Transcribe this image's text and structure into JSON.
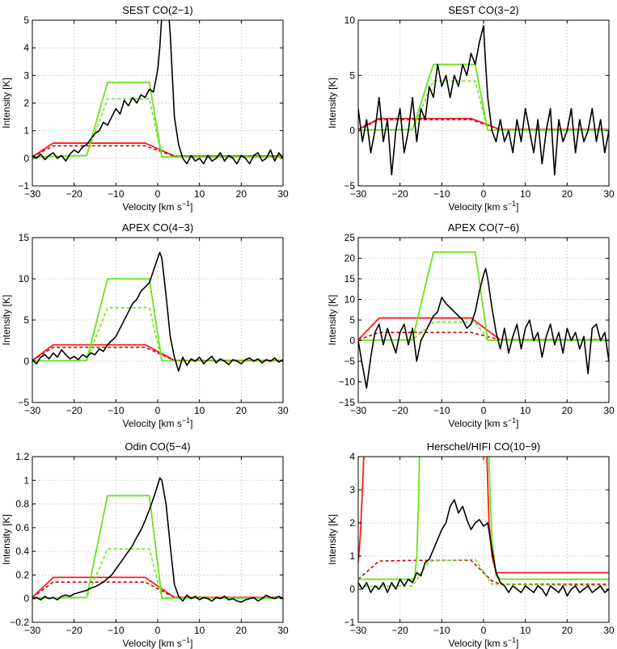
{
  "figure": {
    "xlabel": "Velocity [km s",
    "xlabel_sup": "−1",
    "xlabel_end": "]",
    "ylabel": "Intensity [K]"
  },
  "chart_data": [
    {
      "type": "line",
      "title": "SEST CO(2−1)",
      "xlim": [
        -30,
        30
      ],
      "ylim": [
        -1,
        5
      ],
      "xticks": [
        -30,
        -20,
        -10,
        0,
        10,
        20,
        30
      ],
      "xtick_labels": [
        "−30",
        "−20",
        "−10",
        "0",
        "10",
        "20",
        "30"
      ],
      "yticks": [
        -1,
        0,
        1,
        2,
        3,
        4,
        5
      ],
      "ytick_labels": [
        "−1",
        "0",
        "1",
        "2",
        "3",
        "4",
        "5"
      ],
      "grid": true,
      "model_red": [
        -30,
        0.05,
        -25,
        0.55,
        -3,
        0.55,
        4,
        0.08,
        30,
        0.08
      ],
      "model_red_dash": [
        -30,
        0.05,
        -25,
        0.45,
        -3,
        0.45,
        4,
        0.07,
        30,
        0.07
      ],
      "model_green": [
        -30,
        0.05,
        -17,
        0.1,
        -12,
        2.75,
        -2,
        2.75,
        1,
        0.05,
        30,
        0.05
      ],
      "model_green_dash": [
        -30,
        0.05,
        -17,
        0.1,
        -12,
        2.15,
        -2,
        2.15,
        1,
        0.05,
        30,
        0.05
      ],
      "observed": [
        -30,
        0.1,
        -29,
        0.0,
        -28,
        0.15,
        -27,
        -0.05,
        -26,
        0.1,
        -25,
        0.2,
        -24,
        0.0,
        -23,
        0.1,
        -22,
        -0.1,
        -21,
        0.15,
        -20,
        0.3,
        -19,
        0.2,
        -18,
        0.4,
        -17,
        0.5,
        -16,
        0.7,
        -15,
        0.9,
        -14,
        1.0,
        -13,
        1.3,
        -12,
        1.2,
        -11,
        1.5,
        -10,
        1.8,
        -9,
        1.6,
        -8,
        2.1,
        -7,
        1.9,
        -6,
        2.2,
        -5,
        2.0,
        -4,
        2.3,
        -3,
        2.2,
        -2,
        2.5,
        -1,
        2.4,
        0,
        3.2,
        0.5,
        4.0,
        1,
        5.2,
        2,
        6.5,
        3,
        4.5,
        4,
        1.5,
        5,
        0.5,
        6,
        0.0,
        7,
        -0.2,
        8,
        0.1,
        9,
        -0.1,
        10,
        0.0,
        11,
        -0.2,
        12,
        0.1,
        13,
        -0.1,
        14,
        0.0,
        15,
        0.2,
        16,
        -0.1,
        17,
        0.1,
        18,
        0.0,
        19,
        -0.2,
        20,
        0.1,
        21,
        0.0,
        22,
        -0.2,
        23,
        0.1,
        24,
        0.2,
        25,
        -0.1,
        26,
        0.0,
        27,
        0.3,
        28,
        -0.1,
        29,
        0.2,
        30,
        0.0
      ]
    },
    {
      "type": "line",
      "title": "SEST CO(3−2)",
      "xlim": [
        -30,
        30
      ],
      "ylim": [
        -5,
        10
      ],
      "xticks": [
        -30,
        -20,
        -10,
        0,
        10,
        20,
        30
      ],
      "xtick_labels": [
        "−30",
        "−20",
        "−10",
        "0",
        "10",
        "20",
        "30"
      ],
      "yticks": [
        -5,
        0,
        5,
        10
      ],
      "ytick_labels": [
        "−5",
        "0",
        "5",
        "10"
      ],
      "grid": true,
      "model_red": [
        -30,
        0.1,
        -25,
        1.1,
        -3,
        1.1,
        4,
        0.1,
        30,
        0.1
      ],
      "model_red_dash": [
        -30,
        0.1,
        -25,
        1.0,
        -3,
        1.0,
        4,
        0.1,
        30,
        0.1
      ],
      "model_green": [
        -30,
        0.05,
        -17,
        0.1,
        -12,
        6.0,
        -2,
        6.0,
        1,
        0.05,
        30,
        0.05
      ],
      "model_green_dash": [
        -30,
        0.05,
        -17,
        0.1,
        -12,
        4.5,
        -2,
        4.5,
        1,
        0.05,
        30,
        0.05
      ],
      "observed": [
        -30,
        2,
        -29,
        -1,
        -28,
        1,
        -27,
        -2,
        -26,
        0,
        -25,
        3,
        -24,
        -1,
        -23,
        1,
        -22,
        -4,
        -21,
        0,
        -20,
        2,
        -19,
        -2,
        -18,
        0,
        -17,
        3,
        -16,
        -1,
        -15,
        2,
        -14,
        1,
        -13,
        4,
        -12,
        3,
        -11,
        6,
        -10,
        4,
        -9,
        5,
        -8,
        3,
        -7,
        5,
        -6,
        4,
        -5,
        6,
        -4,
        5,
        -3,
        7,
        -2,
        6,
        -1,
        8,
        0,
        9.5,
        0.5,
        6,
        1,
        3,
        2,
        0,
        3,
        -1,
        4,
        1,
        5,
        -1,
        6,
        0,
        7,
        -2,
        8,
        1,
        9,
        -1,
        10,
        2,
        11,
        0,
        12,
        -2,
        13,
        1,
        14,
        -3,
        15,
        0,
        16,
        2,
        17,
        -4,
        18,
        1,
        19,
        -1,
        20,
        0,
        21,
        2,
        22,
        -2,
        23,
        1,
        24,
        -1,
        25,
        0,
        26,
        2,
        27,
        -1,
        28,
        1,
        29,
        -2,
        30,
        0
      ]
    },
    {
      "type": "line",
      "title": "APEX CO(4−3)",
      "xlim": [
        -30,
        30
      ],
      "ylim": [
        -5,
        15
      ],
      "xticks": [
        -30,
        -20,
        -10,
        0,
        10,
        20,
        30
      ],
      "xtick_labels": [
        "−30",
        "−20",
        "−10",
        "0",
        "10",
        "20",
        "30"
      ],
      "yticks": [
        -5,
        0,
        5,
        10,
        15
      ],
      "ytick_labels": [
        "−5",
        "0",
        "5",
        "10",
        "15"
      ],
      "grid": true,
      "model_red": [
        -30,
        0.1,
        -25,
        2.0,
        -3,
        2.0,
        4,
        0.1,
        30,
        0.1
      ],
      "model_red_dash": [
        -30,
        0.1,
        -25,
        1.7,
        -3,
        1.7,
        4,
        0.1,
        30,
        0.1
      ],
      "model_green": [
        -30,
        0.05,
        -17,
        0.1,
        -12,
        10.0,
        -2,
        10.0,
        1,
        0.05,
        30,
        0.05
      ],
      "model_green_dash": [
        -30,
        0.05,
        -17,
        0.1,
        -12,
        6.5,
        -2,
        6.5,
        1,
        0.05,
        30,
        0.05
      ],
      "observed": [
        -30,
        0.2,
        -29,
        -0.3,
        -28,
        0.5,
        -27,
        0.8,
        -26,
        0.3,
        -25,
        1.0,
        -24,
        0.5,
        -23,
        1.4,
        -22,
        0.8,
        -21,
        0.3,
        -20,
        0.6,
        -19,
        0.2,
        -18,
        0.8,
        -17,
        0.5,
        -16,
        1.0,
        -15,
        0.8,
        -14,
        1.5,
        -13,
        1.2,
        -12,
        2.0,
        -11,
        2.5,
        -10,
        3.0,
        -9,
        4.0,
        -8,
        5.0,
        -7,
        6.0,
        -6,
        7.0,
        -5,
        7.5,
        -4,
        8.5,
        -3,
        9.0,
        -2,
        9.5,
        -1,
        11.0,
        0,
        12.5,
        0.5,
        13.2,
        1,
        12.5,
        2,
        8.0,
        3,
        3.0,
        4,
        0.5,
        5,
        -1.2,
        6,
        0.5,
        7,
        -0.5,
        8,
        0.3,
        9,
        0.0,
        10,
        0.5,
        11,
        -0.3,
        12,
        0.2,
        13,
        0.6,
        14,
        -0.2,
        15,
        0.3,
        16,
        0.0,
        17,
        -0.4,
        18,
        0.2,
        19,
        0.0,
        20,
        -0.3,
        21,
        0.2,
        22,
        0.4,
        23,
        0.0,
        24,
        0.3,
        25,
        -0.2,
        26,
        0.2,
        27,
        0.0,
        28,
        0.4,
        29,
        -0.1,
        30,
        0.2
      ]
    },
    {
      "type": "line",
      "title": "APEX CO(7−6)",
      "xlim": [
        -30,
        30
      ],
      "ylim": [
        -15,
        25
      ],
      "xticks": [
        -30,
        -20,
        -10,
        0,
        10,
        20,
        30
      ],
      "xtick_labels": [
        "−30",
        "−20",
        "−10",
        "0",
        "10",
        "20",
        "30"
      ],
      "yticks": [
        -15,
        -10,
        -5,
        0,
        5,
        10,
        15,
        20,
        25
      ],
      "ytick_labels": [
        "−15",
        "−10",
        "−5",
        "0",
        "5",
        "10",
        "15",
        "20",
        "25"
      ],
      "grid": true,
      "model_red": [
        -30,
        0.2,
        -25,
        5.5,
        -3,
        5.5,
        4,
        0.2,
        30,
        0.2
      ],
      "model_red_dash": [
        -30,
        0.2,
        -25,
        2.0,
        -3,
        2.0,
        4,
        0.2,
        30,
        0.2
      ],
      "model_green": [
        -30,
        0.1,
        -17,
        0.2,
        -12,
        21.5,
        -2,
        21.5,
        1,
        0.1,
        30,
        0.1
      ],
      "model_green_dash": [
        -30,
        0.1,
        -17,
        0.2,
        -12,
        4.5,
        -2,
        4.5,
        1,
        0.1,
        30,
        0.1
      ],
      "observed": [
        -30,
        0,
        -29,
        -6,
        -28,
        -11.5,
        -27,
        -4,
        -26,
        2,
        -25,
        4,
        -24,
        -1,
        -23,
        3,
        -22,
        0,
        -21,
        -3,
        -20,
        2,
        -19,
        4,
        -18,
        -1,
        -17,
        3,
        -16,
        -5,
        -15,
        0,
        -14,
        2,
        -13,
        4,
        -12,
        6,
        -11,
        7,
        -10,
        10.5,
        -9,
        9,
        -8,
        8,
        -7,
        7,
        -6,
        6,
        -5,
        5,
        -4,
        3,
        -3,
        4,
        -2,
        7,
        -1,
        12,
        0,
        16,
        0.5,
        17.5,
        1,
        15,
        2,
        8,
        3,
        2,
        4,
        -2,
        5,
        3,
        6,
        -3,
        7,
        1,
        8,
        4,
        9,
        -2,
        10,
        3,
        11,
        5,
        12,
        0,
        13,
        2,
        14,
        -4,
        15,
        1,
        16,
        4,
        17,
        -1,
        18,
        2,
        19,
        -3,
        20,
        3,
        21,
        0,
        22,
        2,
        23,
        -2,
        24,
        1,
        25,
        -8,
        26,
        3,
        27,
        4,
        28,
        0,
        29,
        2,
        30,
        -5
      ]
    },
    {
      "type": "line",
      "title": "Odin CO(5−4)",
      "xlim": [
        -30,
        30
      ],
      "ylim": [
        -0.2,
        1.2
      ],
      "xticks": [
        -30,
        -20,
        -10,
        0,
        10,
        20,
        30
      ],
      "xtick_labels": [
        "−30",
        "−20",
        "−10",
        "0",
        "10",
        "20",
        "30"
      ],
      "yticks": [
        -0.2,
        0,
        0.2,
        0.4,
        0.6,
        0.8,
        1.0,
        1.2
      ],
      "ytick_labels": [
        "−0.2",
        "0",
        "0.2",
        "0.4",
        "0.6",
        "0.8",
        "1",
        "1.2"
      ],
      "grid": true,
      "model_red": [
        -30,
        0.01,
        -25,
        0.18,
        -3,
        0.18,
        4,
        0.01,
        30,
        0.01
      ],
      "model_red_dash": [
        -30,
        0.01,
        -25,
        0.14,
        -3,
        0.14,
        4,
        0.01,
        30,
        0.01
      ],
      "model_green": [
        -30,
        0.005,
        -17,
        0.01,
        -12,
        0.87,
        -2,
        0.87,
        1,
        0.005,
        30,
        0.005
      ],
      "model_green_dash": [
        -30,
        0.005,
        -17,
        0.01,
        -12,
        0.42,
        -2,
        0.42,
        1,
        0.005,
        30,
        0.005
      ],
      "observed": [
        -30,
        0.0,
        -29,
        0.01,
        -28,
        -0.01,
        -27,
        0.02,
        -26,
        0.0,
        -25,
        0.01,
        -24,
        -0.01,
        -23,
        0.02,
        -22,
        0.03,
        -21,
        0.02,
        -20,
        0.04,
        -19,
        0.05,
        -18,
        0.06,
        -17,
        0.07,
        -16,
        0.09,
        -15,
        0.1,
        -14,
        0.12,
        -13,
        0.14,
        -12,
        0.17,
        -11,
        0.2,
        -10,
        0.25,
        -9,
        0.3,
        -8,
        0.35,
        -7,
        0.4,
        -6,
        0.45,
        -5,
        0.52,
        -4,
        0.58,
        -3,
        0.66,
        -2,
        0.75,
        -1,
        0.85,
        0,
        0.96,
        0.5,
        1.02,
        1,
        1.0,
        2,
        0.8,
        3,
        0.45,
        4,
        0.12,
        5,
        0.02,
        6,
        -0.02,
        7,
        0.03,
        8,
        0.0,
        9,
        0.02,
        10,
        -0.01,
        11,
        0.01,
        12,
        0.0,
        13,
        -0.02,
        14,
        0.01,
        15,
        0.0,
        16,
        0.02,
        17,
        -0.01,
        18,
        0.0,
        19,
        -0.02,
        20,
        -0.03,
        21,
        -0.01,
        22,
        0.0,
        23,
        0.01,
        24,
        -0.02,
        25,
        0.0,
        26,
        0.03,
        27,
        0.01,
        28,
        0.0,
        29,
        0.02,
        30,
        0.0
      ]
    },
    {
      "type": "line",
      "title": "Herschel/HIFI CO(10−9)",
      "xlim": [
        -30,
        30
      ],
      "ylim": [
        -1,
        4
      ],
      "xticks": [
        -30,
        -20,
        -10,
        0,
        10,
        20,
        30
      ],
      "xtick_labels": [
        "−30",
        "−20",
        "−10",
        "0",
        "10",
        "20",
        "30"
      ],
      "yticks": [
        -1,
        0,
        1,
        2,
        3,
        4
      ],
      "ytick_labels": [
        "−1",
        "0",
        "1",
        "2",
        "3",
        "4"
      ],
      "grid": true,
      "model_red": [
        -30,
        0.8,
        -29.5,
        1.6,
        -29,
        3.0,
        -28.6,
        4.2,
        -28.4,
        5.0,
        -25,
        6,
        -3,
        6,
        0.5,
        5.0,
        0.8,
        4.0,
        1.3,
        2.0,
        2,
        1.0,
        3,
        0.5,
        30,
        0.5
      ],
      "model_red_dash": [
        -30,
        0.3,
        -25,
        0.85,
        -17,
        0.87,
        -3,
        0.87,
        2,
        0.25,
        4,
        0.15,
        30,
        0.15
      ],
      "model_green": [
        -30,
        0.3,
        -16.5,
        0.3,
        -16,
        1.0,
        -15.6,
        2.5,
        -15.3,
        4.2,
        -15,
        5.0,
        -5,
        6,
        1,
        5.0,
        1.4,
        3.5,
        2,
        1.5,
        3,
        0.4,
        4,
        0.3,
        30,
        0.3
      ],
      "model_green_dash": [
        -30,
        0.08,
        -17,
        0.1,
        -13,
        0.85,
        -2,
        0.9,
        2,
        0.15,
        30,
        0.1
      ],
      "observed": [
        -30,
        0.2,
        -29,
        0.0,
        -28,
        0.2,
        -27,
        -0.1,
        -26,
        0.1,
        -25,
        0.0,
        -24,
        0.2,
        -23,
        -0.1,
        -22,
        0.2,
        -21,
        0.0,
        -20,
        0.3,
        -19,
        0.1,
        -18,
        0.3,
        -17,
        0.2,
        -16,
        0.5,
        -15,
        0.4,
        -14,
        0.8,
        -13,
        0.9,
        -12,
        1.2,
        -11,
        1.5,
        -10,
        1.8,
        -9,
        2.0,
        -8,
        2.5,
        -7,
        2.7,
        -6,
        2.3,
        -5,
        2.5,
        -4,
        2.1,
        -3,
        1.8,
        -2,
        2.0,
        -1,
        2.1,
        0,
        1.9,
        1,
        2.0,
        2,
        1.2,
        3,
        0.5,
        4,
        0.2,
        5,
        0.1,
        6,
        -0.1,
        7,
        0.1,
        8,
        0.0,
        9,
        -0.1,
        10,
        0.1,
        11,
        0.0,
        12,
        -0.1,
        13,
        0.1,
        14,
        0.0,
        15,
        -0.2,
        16,
        0.1,
        17,
        0.0,
        18,
        -0.1,
        19,
        0.1,
        20,
        -0.2,
        21,
        0.0,
        22,
        0.1,
        23,
        -0.1,
        24,
        0.0,
        25,
        0.1,
        26,
        -0.1,
        27,
        0.0,
        28,
        0.1,
        29,
        -0.1,
        30,
        0.0
      ]
    }
  ]
}
